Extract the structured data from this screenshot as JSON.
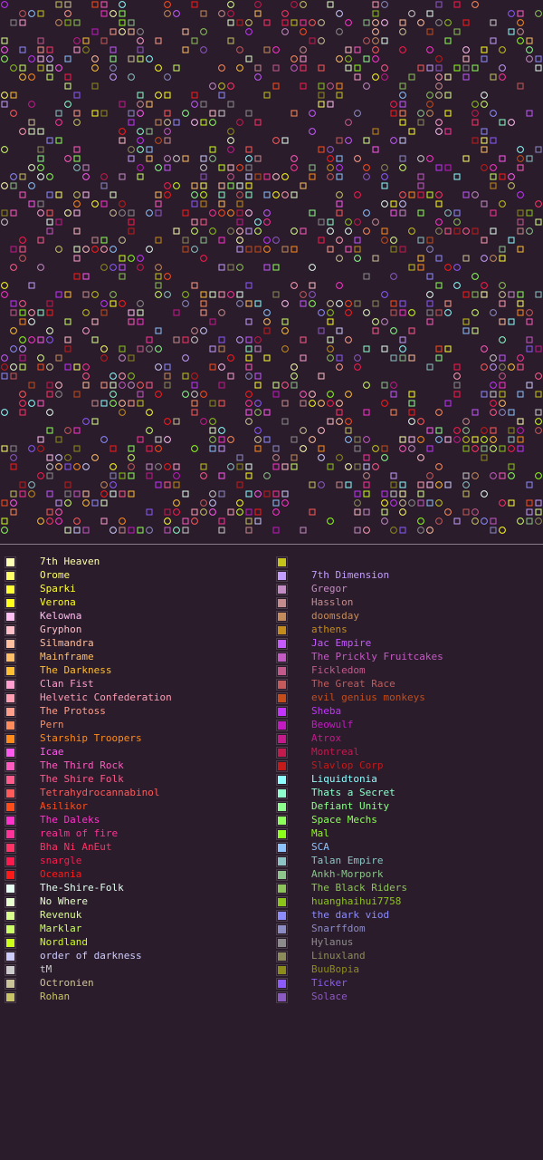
{
  "background_color": "#2b1c2b",
  "legend": {
    "left_column": [
      {
        "name": "7th Heaven",
        "color": "#ffffb3"
      },
      {
        "name": "Orome",
        "color": "#ffff66"
      },
      {
        "name": "Sparki",
        "color": "#ffff33"
      },
      {
        "name": "Verona",
        "color": "#ffff1a"
      },
      {
        "name": "Kelowna",
        "color": "#ffbff2"
      },
      {
        "name": "Gryphon",
        "color": "#ffbfc8"
      },
      {
        "name": "Silmandra",
        "color": "#ffbf9e"
      },
      {
        "name": "Mainframe",
        "color": "#ffbf66"
      },
      {
        "name": "The Darkness",
        "color": "#ffbf33"
      },
      {
        "name": "Clan Fist",
        "color": "#ff9ecf"
      },
      {
        "name": "Helvetic Confederation",
        "color": "#ff9eb3"
      },
      {
        "name": "The Protoss",
        "color": "#ff9e8a"
      },
      {
        "name": "Pern",
        "color": "#ff8c5a"
      },
      {
        "name": "Starship Troopers",
        "color": "#ff8c1a"
      },
      {
        "name": "Icae",
        "color": "#ff5aef"
      },
      {
        "name": "The Third Rock",
        "color": "#ff5abf"
      },
      {
        "name": "The Shire Folk",
        "color": "#ff5a8c"
      },
      {
        "name": "Tetrahydrocannabinol",
        "color": "#ff5a5a"
      },
      {
        "name": "Asilikor",
        "color": "#ff4d1a"
      },
      {
        "name": "The Daleks",
        "color": "#ff33cc"
      },
      {
        "name": "realm of fire",
        "color": "#ff3399"
      },
      {
        "name": "Bha Ni AnEut",
        "color": "#ff3366"
      },
      {
        "name": "snargle",
        "color": "#ff1a4d"
      },
      {
        "name": "Oceania",
        "color": "#ff1a1a"
      },
      {
        "name": "The-Shire-Folk",
        "color": "#e6fff2"
      },
      {
        "name": "No Where",
        "color": "#e6ffcc"
      },
      {
        "name": "Revenuk",
        "color": "#d9ff8c"
      },
      {
        "name": "Marklar",
        "color": "#ccff66"
      },
      {
        "name": "Nordland",
        "color": "#ccff1a"
      },
      {
        "name": "order of darkness",
        "color": "#ccccff"
      },
      {
        "name": "tM",
        "color": "#cccccc"
      },
      {
        "name": "Octronien",
        "color": "#ccc499"
      },
      {
        "name": "Rohan",
        "color": "#c8c466"
      }
    ],
    "right_column": [
      {
        "name": "",
        "color": "#c4c41a"
      },
      {
        "name": "7th Dimension",
        "color": "#c49eff"
      },
      {
        "name": "Gregor",
        "color": "#c48cc4"
      },
      {
        "name": "Hasslon",
        "color": "#c48c8c"
      },
      {
        "name": "doomsday",
        "color": "#c48c5a"
      },
      {
        "name": "athens",
        "color": "#c48c1a"
      },
      {
        "name": "Jac Empire",
        "color": "#c45aff"
      },
      {
        "name": "The Prickly Fruitcakes",
        "color": "#c45ac4"
      },
      {
        "name": "Fickledom",
        "color": "#c45a8c"
      },
      {
        "name": "The Great Race",
        "color": "#c45a5a"
      },
      {
        "name": "evil genius monkeys",
        "color": "#c44d1a"
      },
      {
        "name": "Sheba",
        "color": "#c433ff"
      },
      {
        "name": "Beowulf",
        "color": "#c41ac4"
      },
      {
        "name": "Atrox",
        "color": "#c41a8c"
      },
      {
        "name": "Montreal",
        "color": "#c41a4d"
      },
      {
        "name": "Slavlop Corp",
        "color": "#c41a1a"
      },
      {
        "name": "Liquidtonia",
        "color": "#8cffff"
      },
      {
        "name": "Thats a Secret",
        "color": "#8cffcc"
      },
      {
        "name": "Defiant Unity",
        "color": "#8cff8c"
      },
      {
        "name": "Space Mechs",
        "color": "#8cff5a"
      },
      {
        "name": "Mal",
        "color": "#8cff1a"
      },
      {
        "name": "SCA",
        "color": "#8cc4ff"
      },
      {
        "name": "Talan Empire",
        "color": "#8cc4c4"
      },
      {
        "name": "Ankh-Morpork",
        "color": "#8cc48c"
      },
      {
        "name": "The Black Riders",
        "color": "#8cc45a"
      },
      {
        "name": "huanghaihui7758",
        "color": "#8cc41a"
      },
      {
        "name": "the dark viod",
        "color": "#8c8cff"
      },
      {
        "name": "Snarffdom",
        "color": "#8c8cc4"
      },
      {
        "name": "Hylanus",
        "color": "#8c8c8c"
      },
      {
        "name": "Linuxland",
        "color": "#8c8c5a"
      },
      {
        "name": "BuuBopia",
        "color": "#8c8c1a"
      },
      {
        "name": "Ticker",
        "color": "#8c5aff"
      },
      {
        "name": "Solace",
        "color": "#8c5ac4"
      }
    ]
  }
}
